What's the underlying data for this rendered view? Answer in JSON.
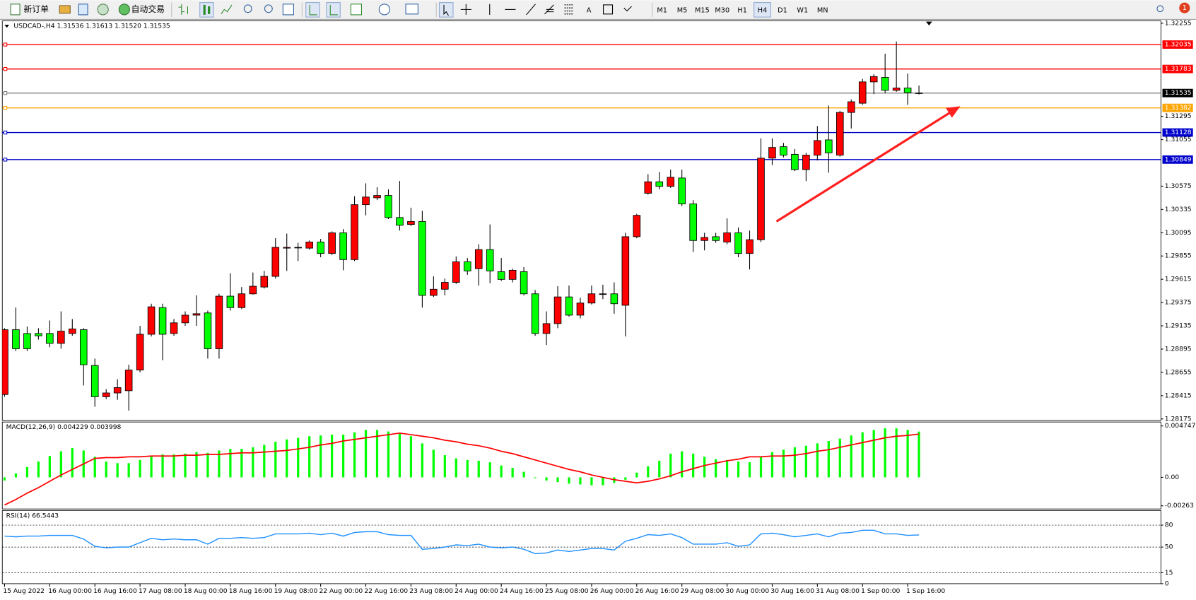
{
  "toolbar": {
    "new_order": "新订单",
    "auto_trade": "自动交易",
    "timeframes": [
      {
        "label": "M1",
        "active": false
      },
      {
        "label": "M5",
        "active": false
      },
      {
        "label": "M15",
        "active": false
      },
      {
        "label": "M30",
        "active": false
      },
      {
        "label": "H1",
        "active": false
      },
      {
        "label": "H4",
        "active": true
      },
      {
        "label": "D1",
        "active": false
      },
      {
        "label": "W1",
        "active": false
      },
      {
        "label": "MN",
        "active": false
      }
    ],
    "notifications": 1
  },
  "chart_data": [
    {
      "type": "candlestick",
      "header": "USDCAD-,H4  1.31536 1.31613 1.31520 1.31535",
      "categories": [
        "15 Aug 2022",
        null,
        null,
        null,
        "16 Aug 00:00",
        null,
        null,
        null,
        "16 Aug 16:00",
        null,
        null,
        null,
        "17 Aug 08:00",
        null,
        null,
        null,
        "18 Aug 00:00",
        null,
        null,
        null,
        "18 Aug 16:00",
        null,
        null,
        null,
        "19 Aug 08:00",
        null,
        null,
        null,
        "22 Aug 00:00",
        null,
        null,
        null,
        "22 Aug 16:00",
        null,
        null,
        null,
        "23 Aug 08:00",
        null,
        null,
        null,
        "24 Aug 00:00",
        null,
        null,
        null,
        "24 Aug 16:00",
        null,
        null,
        null,
        "25 Aug 08:00",
        null,
        null,
        null,
        "26 Aug 00:00",
        null,
        null,
        null,
        "26 Aug 16:00",
        null,
        null,
        null,
        "29 Aug 08:00",
        null,
        null,
        null,
        "30 Aug 00:00",
        null,
        null,
        null,
        "30 Aug 16:00",
        null,
        null,
        null,
        "31 Aug 08:00",
        null,
        null,
        null,
        "1 Sep 00:00",
        null,
        null,
        null,
        "1 Sep 16:00",
        null
      ],
      "open": [
        1.28427,
        1.29095,
        1.29056,
        1.29056,
        1.29056,
        1.28954,
        1.29056,
        1.29095,
        1.28726,
        1.28404,
        1.28443,
        1.28466,
        1.28679,
        1.29048,
        1.29323,
        1.29056,
        1.29166,
        1.29245,
        1.29268,
        1.28899,
        1.29441,
        1.29323,
        1.29465,
        1.29535,
        1.29645,
        1.29936,
        1.29944,
        1.29936,
        1.29999,
        1.29881,
        1.30094,
        1.29818,
        1.30384,
        1.30455,
        1.30479,
        1.30251,
        1.3018,
        1.30211,
        1.29449,
        1.29512,
        1.29583,
        1.29795,
        1.29724,
        1.29921,
        1.29693,
        1.29614,
        1.29693,
        1.29465,
        1.29056,
        1.29158,
        1.29433,
        1.29245,
        1.2937,
        1.29465,
        1.29465,
        1.29347,
        1.30054,
        1.30502,
        1.3062,
        1.30573,
        1.30659,
        1.30392,
        1.30015,
        1.30054,
        1.29999,
        1.30094,
        1.29881,
        1.30023,
        1.30864,
        1.30982,
        1.30903,
        1.30746,
        1.30895,
        1.31052,
        1.30895,
        1.31335,
        1.3143,
        1.3165,
        1.31697,
        1.31563,
        1.31587,
        1.31536
      ],
      "high": [
        1.29111,
        1.29323,
        1.29127,
        1.29111,
        1.2919,
        1.29284,
        1.29205,
        1.29111,
        1.28797,
        1.28482,
        1.28584,
        1.28734,
        1.29135,
        1.29363,
        1.29363,
        1.29205,
        1.29284,
        1.29449,
        1.29292,
        1.29465,
        1.29677,
        1.29535,
        1.29685,
        1.29701,
        1.30038,
        1.30086,
        1.29991,
        1.30015,
        1.30031,
        1.30109,
        1.30133,
        1.30471,
        1.30604,
        1.30565,
        1.30542,
        1.30628,
        1.30353,
        1.30321,
        1.29645,
        1.29622,
        1.2985,
        1.29834,
        1.29976,
        1.3018,
        1.29834,
        1.29724,
        1.2974,
        1.29504,
        1.29284,
        1.29543,
        1.29551,
        1.29425,
        1.29551,
        1.29559,
        1.29583,
        1.30094,
        1.3029,
        1.30699,
        1.30722,
        1.30746,
        1.30746,
        1.30431,
        1.30094,
        1.30094,
        1.30243,
        1.30149,
        1.30117,
        1.31068,
        1.31068,
        1.31021,
        1.30958,
        1.30919,
        1.31194,
        1.31406,
        1.31351,
        1.31469,
        1.31681,
        1.31728,
        1.31941,
        1.32066,
        1.31736,
        1.31613
      ],
      "low": [
        1.28404,
        1.28875,
        1.28875,
        1.28993,
        1.28914,
        1.28899,
        1.29032,
        1.28521,
        1.28301,
        1.2838,
        1.28372,
        1.28262,
        1.28655,
        1.29025,
        1.28781,
        1.29032,
        1.29135,
        1.29135,
        1.28797,
        1.28797,
        1.29292,
        1.29308,
        1.29457,
        1.2952,
        1.29622,
        1.29701,
        1.29803,
        1.29921,
        1.29842,
        1.29866,
        1.29708,
        1.29803,
        1.30274,
        1.30431,
        1.30235,
        1.30117,
        1.30164,
        1.29323,
        1.29433,
        1.29449,
        1.29567,
        1.29661,
        1.29551,
        1.29575,
        1.29598,
        1.29583,
        1.29449,
        1.29032,
        1.28938,
        1.29111,
        1.29229,
        1.29213,
        1.29355,
        1.2941,
        1.2926,
        1.29025,
        1.30038,
        1.30487,
        1.30542,
        1.30557,
        1.30369,
        1.29897,
        1.29913,
        1.29991,
        1.29976,
        1.29842,
        1.29716,
        1.29999,
        1.30793,
        1.30872,
        1.3073,
        1.30628,
        1.3084,
        1.30714,
        1.3088,
        1.3117,
        1.31414,
        1.31524,
        1.31532,
        1.31548,
        1.31414,
        1.3152
      ],
      "close": [
        1.29095,
        1.28899,
        1.28899,
        1.29032,
        1.28954,
        1.2908,
        1.29103,
        1.28734,
        1.28404,
        1.28443,
        1.28498,
        1.28679,
        1.29048,
        1.29331,
        1.29048,
        1.29166,
        1.29245,
        1.2926,
        1.28899,
        1.29441,
        1.29323,
        1.29465,
        1.29543,
        1.29645,
        1.29944,
        1.29944,
        1.2994,
        1.29999,
        1.29881,
        1.30094,
        1.29818,
        1.30384,
        1.30463,
        1.30479,
        1.30251,
        1.30172,
        1.30211,
        1.29449,
        1.29512,
        1.29583,
        1.29795,
        1.29701,
        1.29921,
        1.29701,
        1.29614,
        1.29708,
        1.29465,
        1.29056,
        1.29158,
        1.29433,
        1.29245,
        1.2937,
        1.29465,
        1.2946,
        1.29363,
        1.30054,
        1.30274,
        1.3062,
        1.30573,
        1.30667,
        1.30392,
        1.30015,
        1.30046,
        1.30015,
        1.30094,
        1.29881,
        1.30023,
        1.30864,
        1.30974,
        1.30895,
        1.30746,
        1.30895,
        1.31045,
        1.30919,
        1.31335,
        1.31445,
        1.3165,
        1.31705,
        1.31563,
        1.31587,
        1.3154,
        1.31535
      ],
      "up_color": "#ff0000",
      "down_color": "#00ff00",
      "outline": "#000000",
      "ylim": [
        1.28159,
        1.32279
      ],
      "yticks": [
        1.32255,
        1.31295,
        1.31055,
        1.30575,
        1.30335,
        1.30095,
        1.29855,
        1.29615,
        1.29375,
        1.29135,
        1.28895,
        1.28655,
        1.28415,
        1.28175
      ],
      "hlines": [
        {
          "value": 1.32035,
          "color": "#ff0000",
          "box": "#ff0000"
        },
        {
          "value": 1.31783,
          "color": "#ff0000",
          "box": "#ff0000"
        },
        {
          "value": 1.31535,
          "color": "#808080",
          "box": "#000000"
        },
        {
          "value": 1.31382,
          "color": "#ffa500",
          "box": "#ffa500"
        },
        {
          "value": 1.31128,
          "color": "#0000cd",
          "box": "#0000cd"
        },
        {
          "value": 1.30849,
          "color": "#0000cd",
          "box": "#0000cd"
        }
      ]
    },
    {
      "type": "bar",
      "header": "MACD(12,26,9) 0.004229 0.003998",
      "series": [
        {
          "type": "bar",
          "color": "#00ff00",
          "values": [
            -0.000292,
            0.000365,
            0.000949,
            0.00146,
            0.001971,
            0.002409,
            0.002701,
            0.002482,
            0.001898,
            0.00146,
            0.001314,
            0.001314,
            0.001606,
            0.001971,
            0.002117,
            0.002117,
            0.00219,
            0.002336,
            0.002263,
            0.002482,
            0.002628,
            0.002628,
            0.002774,
            0.002993,
            0.003285,
            0.003504,
            0.00365,
            0.003796,
            0.003869,
            0.003942,
            0.003942,
            0.004161,
            0.00438,
            0.00438,
            0.004234,
            0.004088,
            0.003796,
            0.003139,
            0.002555,
            0.002044,
            0.001752,
            0.001606,
            0.001533,
            0.001387,
            0.001095,
            0.000876,
            0.000511,
            -7.3e-05,
            -0.000292,
            -0.000438,
            -0.000584,
            -0.000657,
            -0.00073,
            -0.00073,
            -0.000511,
            -0.000219,
            0.000438,
            0.001022,
            0.001533,
            0.00219,
            0.002409,
            0.00219,
            0.001898,
            0.001679,
            0.001606,
            0.00146,
            0.001387,
            0.001898,
            0.002336,
            0.002555,
            0.002774,
            0.00292,
            0.003139,
            0.003358,
            0.003577,
            0.003869,
            0.004161,
            0.00438,
            0.004526,
            0.004526,
            0.00438,
            0.004229
          ]
        },
        {
          "type": "line",
          "color": "#ff0000",
          "values": [
            -0.002555,
            -0.002044,
            -0.00146,
            -0.000949,
            -0.000365,
            0.000219,
            0.00073,
            0.001241,
            0.001752,
            0.001825,
            0.001825,
            0.001898,
            0.001898,
            0.001971,
            0.001971,
            0.001971,
            0.002044,
            0.002044,
            0.002117,
            0.002117,
            0.00219,
            0.002263,
            0.002263,
            0.002336,
            0.002409,
            0.002482,
            0.002628,
            0.002774,
            0.002993,
            0.003139,
            0.003358,
            0.003504,
            0.00365,
            0.003796,
            0.003942,
            0.004088,
            0.003942,
            0.003796,
            0.00365,
            0.003431,
            0.003285,
            0.003066,
            0.00292,
            0.002701,
            0.002409,
            0.00219,
            0.001898,
            0.001606,
            0.001314,
            0.001022,
            0.00073,
            0.000511,
            0.000219,
            0,
            -0.000219,
            -0.000365,
            -0.000511,
            -0.000365,
            -0.000146,
            0.000146,
            0.000511,
            0.000803,
            0.001095,
            0.001314,
            0.001533,
            0.001679,
            0.001898,
            0.001898,
            0.001971,
            0.001971,
            0.002044,
            0.00219,
            0.002409,
            0.002555,
            0.002774,
            0.002993,
            0.003212,
            0.003431,
            0.00365,
            0.003796,
            0.003869,
            0.003998
          ]
        }
      ],
      "ylim": [
        -0.00292,
        0.00511
      ],
      "yticks": [
        0.004747,
        {
          "value": 0,
          "label": "0.00"
        },
        -0.00263
      ]
    },
    {
      "type": "line",
      "header": "RSI(14) 66.5443",
      "series": [
        {
          "color": "#1e90ff",
          "values": [
            65,
            64,
            65,
            65,
            66,
            66,
            66,
            61,
            51,
            49,
            50,
            50,
            56,
            62,
            60,
            61,
            60,
            60,
            54,
            62,
            62,
            63,
            62,
            63,
            68,
            68,
            68,
            69,
            67,
            69,
            65,
            70,
            71,
            71,
            67,
            66,
            66,
            47,
            48,
            50,
            53,
            52,
            54,
            50,
            49,
            50,
            47,
            41,
            42,
            46,
            44,
            46,
            48,
            48,
            46,
            58,
            62,
            67,
            66,
            68,
            63,
            54,
            54,
            54,
            56,
            51,
            53,
            68,
            69,
            67,
            64,
            66,
            68,
            64,
            69,
            70,
            73,
            73,
            68,
            68,
            66,
            66.5443
          ]
        }
      ],
      "ylim": [
        0,
        100
      ],
      "yticks": [
        80,
        50,
        15,
        0
      ],
      "grid": "dashed"
    }
  ]
}
